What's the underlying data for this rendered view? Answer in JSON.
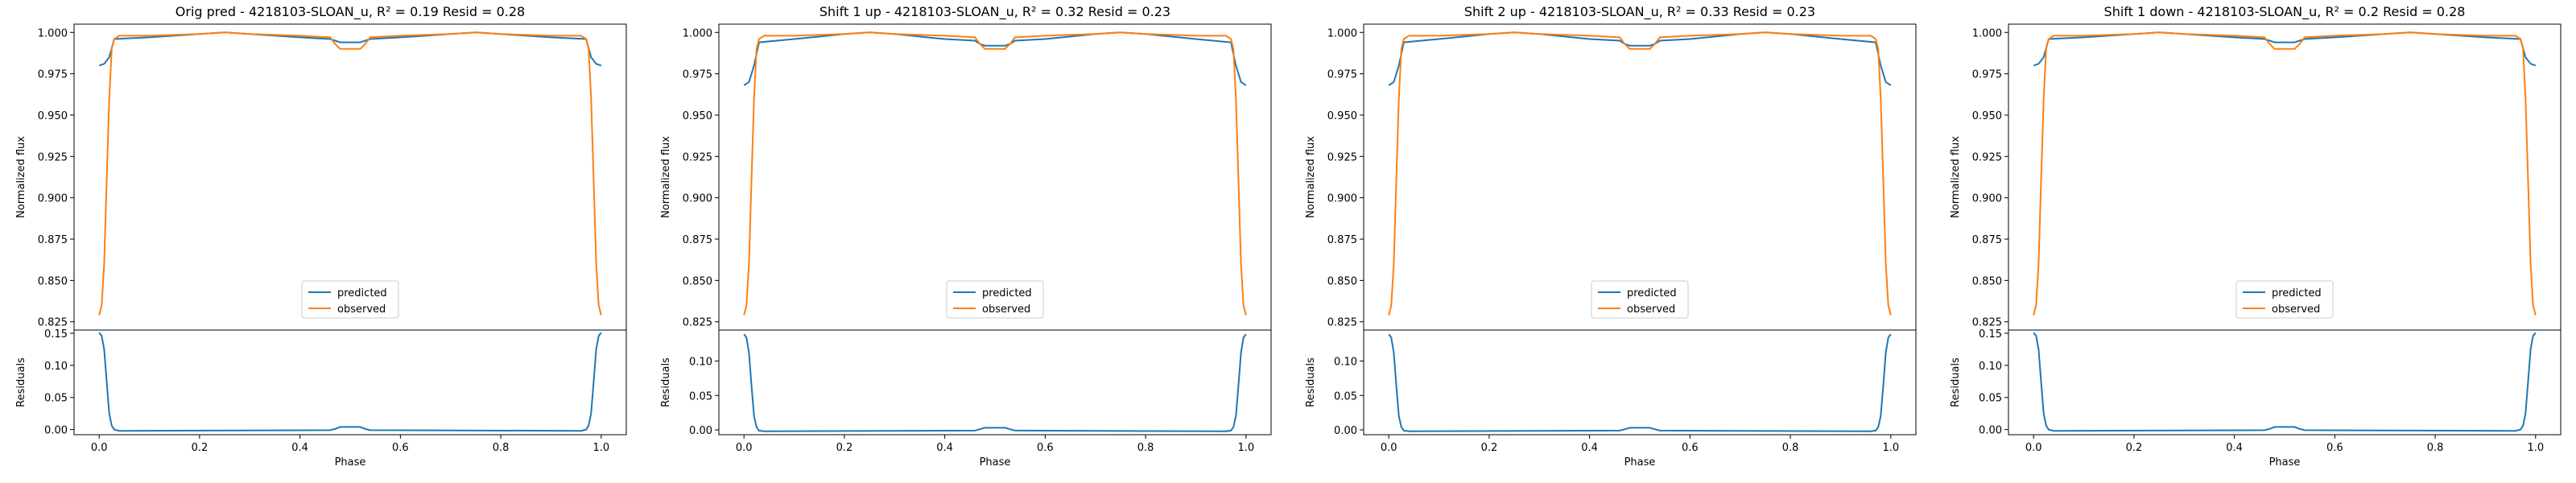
{
  "figure": {
    "colors": {
      "predicted": "#1f77b4",
      "observed": "#ff7f0e",
      "axes": "#000000"
    }
  },
  "chart_data": [
    {
      "type": "line",
      "title": "Orig pred - 4218103-SLOAN_u, R² = 0.19 Resid = 0.28",
      "top": {
        "ylabel": "Normalized flux",
        "ylim": [
          0.82,
          1.005
        ],
        "yticks": [
          "0.825",
          "0.850",
          "0.875",
          "0.900",
          "0.925",
          "0.950",
          "0.975",
          "1.000"
        ],
        "legend": {
          "position": "lower center",
          "entries": [
            "predicted",
            "observed"
          ]
        },
        "series": [
          {
            "name": "predicted",
            "x": [
              0,
              0.01,
              0.02,
              0.03,
              0.1,
              0.2,
              0.25,
              0.3,
              0.4,
              0.46,
              0.47,
              0.48,
              0.5,
              0.52,
              0.53,
              0.54,
              0.6,
              0.7,
              0.75,
              0.8,
              0.9,
              0.97,
              0.98,
              0.99,
              1.0
            ],
            "y": [
              0.98,
              0.981,
              0.985,
              0.996,
              0.997,
              0.999,
              1.0,
              0.999,
              0.997,
              0.996,
              0.995,
              0.994,
              0.994,
              0.994,
              0.995,
              0.996,
              0.997,
              0.999,
              1.0,
              0.999,
              0.997,
              0.996,
              0.985,
              0.981,
              0.98
            ]
          },
          {
            "name": "observed",
            "x": [
              0,
              0.005,
              0.01,
              0.015,
              0.02,
              0.025,
              0.03,
              0.04,
              0.1,
              0.2,
              0.25,
              0.3,
              0.4,
              0.46,
              0.47,
              0.48,
              0.5,
              0.52,
              0.53,
              0.54,
              0.6,
              0.7,
              0.75,
              0.8,
              0.9,
              0.96,
              0.97,
              0.975,
              0.98,
              0.985,
              0.99,
              0.995,
              1.0
            ],
            "y": [
              0.829,
              0.835,
              0.86,
              0.91,
              0.96,
              0.99,
              0.996,
              0.998,
              0.998,
              0.999,
              1.0,
              0.999,
              0.998,
              0.997,
              0.993,
              0.99,
              0.99,
              0.99,
              0.993,
              0.997,
              0.998,
              0.999,
              1.0,
              0.999,
              0.998,
              0.998,
              0.996,
              0.99,
              0.96,
              0.91,
              0.86,
              0.835,
              0.829
            ]
          }
        ]
      },
      "bottom": {
        "ylabel": "Residuals",
        "xlabel": "Phase",
        "ylim": [
          -0.008,
          0.155
        ],
        "yticks": [
          "0.00",
          "0.05",
          "0.10",
          "0.15"
        ],
        "xticks": [
          "0.0",
          "0.2",
          "0.4",
          "0.6",
          "0.8",
          "1.0"
        ],
        "series": [
          {
            "name": "residuals",
            "x": [
              0,
              0.005,
              0.01,
              0.015,
              0.02,
              0.025,
              0.03,
              0.04,
              0.46,
              0.47,
              0.48,
              0.52,
              0.53,
              0.54,
              0.96,
              0.97,
              0.975,
              0.98,
              0.985,
              0.99,
              0.995,
              1.0
            ],
            "y": [
              0.151,
              0.146,
              0.125,
              0.075,
              0.025,
              0.006,
              0.0,
              -0.002,
              -0.001,
              0.001,
              0.004,
              0.004,
              0.001,
              -0.001,
              -0.002,
              0.0,
              0.006,
              0.025,
              0.075,
              0.125,
              0.146,
              0.151
            ]
          }
        ]
      }
    },
    {
      "type": "line",
      "title": "Shift 1 up - 4218103-SLOAN_u, R² = 0.32 Resid = 0.23",
      "top": {
        "ylabel": "Normalized flux",
        "ylim": [
          0.82,
          1.005
        ],
        "yticks": [
          "0.825",
          "0.850",
          "0.875",
          "0.900",
          "0.925",
          "0.950",
          "0.975",
          "1.000"
        ],
        "legend": {
          "position": "lower center",
          "entries": [
            "predicted",
            "observed"
          ]
        },
        "series": [
          {
            "name": "predicted",
            "x": [
              0,
              0.01,
              0.02,
              0.03,
              0.1,
              0.2,
              0.25,
              0.3,
              0.4,
              0.46,
              0.47,
              0.48,
              0.5,
              0.52,
              0.53,
              0.54,
              0.6,
              0.7,
              0.75,
              0.8,
              0.9,
              0.97,
              0.98,
              0.99,
              1.0
            ],
            "y": [
              0.968,
              0.97,
              0.98,
              0.994,
              0.996,
              0.999,
              1.0,
              0.999,
              0.996,
              0.995,
              0.993,
              0.992,
              0.992,
              0.992,
              0.993,
              0.995,
              0.996,
              0.999,
              1.0,
              0.999,
              0.996,
              0.994,
              0.98,
              0.97,
              0.968
            ]
          },
          {
            "name": "observed",
            "x": [
              0,
              0.005,
              0.01,
              0.015,
              0.02,
              0.025,
              0.03,
              0.04,
              0.1,
              0.2,
              0.25,
              0.3,
              0.4,
              0.46,
              0.47,
              0.48,
              0.5,
              0.52,
              0.53,
              0.54,
              0.6,
              0.7,
              0.75,
              0.8,
              0.9,
              0.96,
              0.97,
              0.975,
              0.98,
              0.985,
              0.99,
              0.995,
              1.0
            ],
            "y": [
              0.829,
              0.835,
              0.86,
              0.91,
              0.96,
              0.99,
              0.996,
              0.998,
              0.998,
              0.999,
              1.0,
              0.999,
              0.998,
              0.997,
              0.993,
              0.99,
              0.99,
              0.99,
              0.993,
              0.997,
              0.998,
              0.999,
              1.0,
              0.999,
              0.998,
              0.998,
              0.996,
              0.99,
              0.96,
              0.91,
              0.86,
              0.835,
              0.829
            ]
          }
        ]
      },
      "bottom": {
        "ylabel": "Residuals",
        "xlabel": "Phase",
        "ylim": [
          -0.007,
          0.145
        ],
        "yticks": [
          "0.00",
          "0.05",
          "0.10"
        ],
        "xticks": [
          "0.0",
          "0.2",
          "0.4",
          "0.6",
          "0.8",
          "1.0"
        ],
        "series": [
          {
            "name": "residuals",
            "x": [
              0,
              0.005,
              0.01,
              0.015,
              0.02,
              0.025,
              0.03,
              0.04,
              0.46,
              0.47,
              0.48,
              0.52,
              0.53,
              0.54,
              0.96,
              0.97,
              0.975,
              0.98,
              0.985,
              0.99,
              0.995,
              1.0
            ],
            "y": [
              0.139,
              0.134,
              0.112,
              0.065,
              0.02,
              0.004,
              -0.001,
              -0.002,
              -0.001,
              0.001,
              0.003,
              0.003,
              0.001,
              -0.001,
              -0.002,
              -0.001,
              0.004,
              0.02,
              0.065,
              0.112,
              0.134,
              0.139
            ]
          }
        ]
      }
    },
    {
      "type": "line",
      "title": "Shift 2 up - 4218103-SLOAN_u, R² = 0.33 Resid = 0.23",
      "top": {
        "ylabel": "Normalized flux",
        "ylim": [
          0.82,
          1.005
        ],
        "yticks": [
          "0.825",
          "0.850",
          "0.875",
          "0.900",
          "0.925",
          "0.950",
          "0.975",
          "1.000"
        ],
        "legend": {
          "position": "lower center",
          "entries": [
            "predicted",
            "observed"
          ]
        },
        "series": [
          {
            "name": "predicted",
            "x": [
              0,
              0.01,
              0.02,
              0.03,
              0.1,
              0.2,
              0.25,
              0.3,
              0.4,
              0.46,
              0.47,
              0.48,
              0.5,
              0.52,
              0.53,
              0.54,
              0.6,
              0.7,
              0.75,
              0.8,
              0.9,
              0.97,
              0.98,
              0.99,
              1.0
            ],
            "y": [
              0.968,
              0.97,
              0.98,
              0.994,
              0.996,
              0.999,
              1.0,
              0.999,
              0.996,
              0.995,
              0.993,
              0.992,
              0.992,
              0.992,
              0.993,
              0.995,
              0.996,
              0.999,
              1.0,
              0.999,
              0.996,
              0.994,
              0.98,
              0.97,
              0.968
            ]
          },
          {
            "name": "observed",
            "x": [
              0,
              0.005,
              0.01,
              0.015,
              0.02,
              0.025,
              0.03,
              0.04,
              0.1,
              0.2,
              0.25,
              0.3,
              0.4,
              0.46,
              0.47,
              0.48,
              0.5,
              0.52,
              0.53,
              0.54,
              0.6,
              0.7,
              0.75,
              0.8,
              0.9,
              0.96,
              0.97,
              0.975,
              0.98,
              0.985,
              0.99,
              0.995,
              1.0
            ],
            "y": [
              0.829,
              0.835,
              0.86,
              0.91,
              0.96,
              0.99,
              0.996,
              0.998,
              0.998,
              0.999,
              1.0,
              0.999,
              0.998,
              0.997,
              0.993,
              0.99,
              0.99,
              0.99,
              0.993,
              0.997,
              0.998,
              0.999,
              1.0,
              0.999,
              0.998,
              0.998,
              0.996,
              0.99,
              0.96,
              0.91,
              0.86,
              0.835,
              0.829
            ]
          }
        ]
      },
      "bottom": {
        "ylabel": "Residuals",
        "xlabel": "Phase",
        "ylim": [
          -0.007,
          0.145
        ],
        "yticks": [
          "0.00",
          "0.05",
          "0.10"
        ],
        "xticks": [
          "0.0",
          "0.2",
          "0.4",
          "0.6",
          "0.8",
          "1.0"
        ],
        "series": [
          {
            "name": "residuals",
            "x": [
              0,
              0.005,
              0.01,
              0.015,
              0.02,
              0.025,
              0.03,
              0.04,
              0.46,
              0.47,
              0.48,
              0.52,
              0.53,
              0.54,
              0.96,
              0.97,
              0.975,
              0.98,
              0.985,
              0.99,
              0.995,
              1.0
            ],
            "y": [
              0.139,
              0.134,
              0.112,
              0.065,
              0.02,
              0.004,
              -0.001,
              -0.002,
              -0.001,
              0.001,
              0.003,
              0.003,
              0.001,
              -0.001,
              -0.002,
              -0.001,
              0.004,
              0.02,
              0.065,
              0.112,
              0.134,
              0.139
            ]
          }
        ]
      }
    },
    {
      "type": "line",
      "title": "Shift 1 down - 4218103-SLOAN_u, R² = 0.2 Resid = 0.28",
      "top": {
        "ylabel": "Normalized flux",
        "ylim": [
          0.82,
          1.005
        ],
        "yticks": [
          "0.825",
          "0.850",
          "0.875",
          "0.900",
          "0.925",
          "0.950",
          "0.975",
          "1.000"
        ],
        "legend": {
          "position": "lower center",
          "entries": [
            "predicted",
            "observed"
          ]
        },
        "series": [
          {
            "name": "predicted",
            "x": [
              0,
              0.01,
              0.02,
              0.03,
              0.1,
              0.2,
              0.25,
              0.3,
              0.4,
              0.46,
              0.47,
              0.48,
              0.5,
              0.52,
              0.53,
              0.54,
              0.6,
              0.7,
              0.75,
              0.8,
              0.9,
              0.97,
              0.98,
              0.99,
              1.0
            ],
            "y": [
              0.98,
              0.981,
              0.985,
              0.996,
              0.997,
              0.999,
              1.0,
              0.999,
              0.997,
              0.996,
              0.995,
              0.994,
              0.994,
              0.994,
              0.995,
              0.996,
              0.997,
              0.999,
              1.0,
              0.999,
              0.997,
              0.996,
              0.985,
              0.981,
              0.98
            ]
          },
          {
            "name": "observed",
            "x": [
              0,
              0.005,
              0.01,
              0.015,
              0.02,
              0.025,
              0.03,
              0.04,
              0.1,
              0.2,
              0.25,
              0.3,
              0.4,
              0.46,
              0.47,
              0.48,
              0.5,
              0.52,
              0.53,
              0.54,
              0.6,
              0.7,
              0.75,
              0.8,
              0.9,
              0.96,
              0.97,
              0.975,
              0.98,
              0.985,
              0.99,
              0.995,
              1.0
            ],
            "y": [
              0.829,
              0.835,
              0.86,
              0.91,
              0.96,
              0.99,
              0.996,
              0.998,
              0.998,
              0.999,
              1.0,
              0.999,
              0.998,
              0.997,
              0.993,
              0.99,
              0.99,
              0.99,
              0.993,
              0.997,
              0.998,
              0.999,
              1.0,
              0.999,
              0.998,
              0.998,
              0.996,
              0.99,
              0.96,
              0.91,
              0.86,
              0.835,
              0.829
            ]
          }
        ]
      },
      "bottom": {
        "ylabel": "Residuals",
        "xlabel": "Phase",
        "ylim": [
          -0.008,
          0.155
        ],
        "yticks": [
          "0.00",
          "0.05",
          "0.10",
          "0.15"
        ],
        "xticks": [
          "0.0",
          "0.2",
          "0.4",
          "0.6",
          "0.8",
          "1.0"
        ],
        "series": [
          {
            "name": "residuals",
            "x": [
              0,
              0.005,
              0.01,
              0.015,
              0.02,
              0.025,
              0.03,
              0.04,
              0.46,
              0.47,
              0.48,
              0.52,
              0.53,
              0.54,
              0.96,
              0.97,
              0.975,
              0.98,
              0.985,
              0.99,
              0.995,
              1.0
            ],
            "y": [
              0.151,
              0.146,
              0.125,
              0.075,
              0.025,
              0.006,
              0.0,
              -0.002,
              -0.001,
              0.001,
              0.004,
              0.004,
              0.001,
              -0.001,
              -0.002,
              0.0,
              0.006,
              0.025,
              0.075,
              0.125,
              0.146,
              0.151
            ]
          }
        ]
      }
    }
  ]
}
